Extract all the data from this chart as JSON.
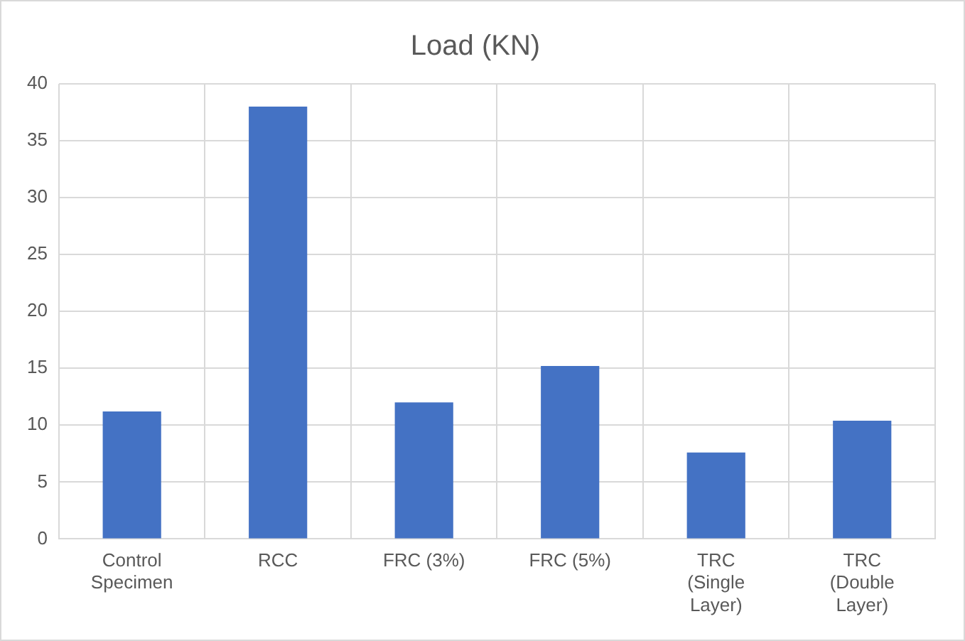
{
  "chart_data": {
    "type": "bar",
    "title": "Load (KN)",
    "categories": [
      "Control Specimen",
      "RCC",
      "FRC (3%)",
      "FRC (5%)",
      "TRC (Single Layer)",
      "TRC (Double Layer)"
    ],
    "values": [
      11.2,
      38,
      12,
      15.2,
      7.6,
      10.4
    ],
    "color": "#4472c4",
    "ylim": [
      0,
      40
    ],
    "yticks": [
      0,
      5,
      10,
      15,
      20,
      25,
      30,
      35,
      40
    ],
    "grid": true
  }
}
